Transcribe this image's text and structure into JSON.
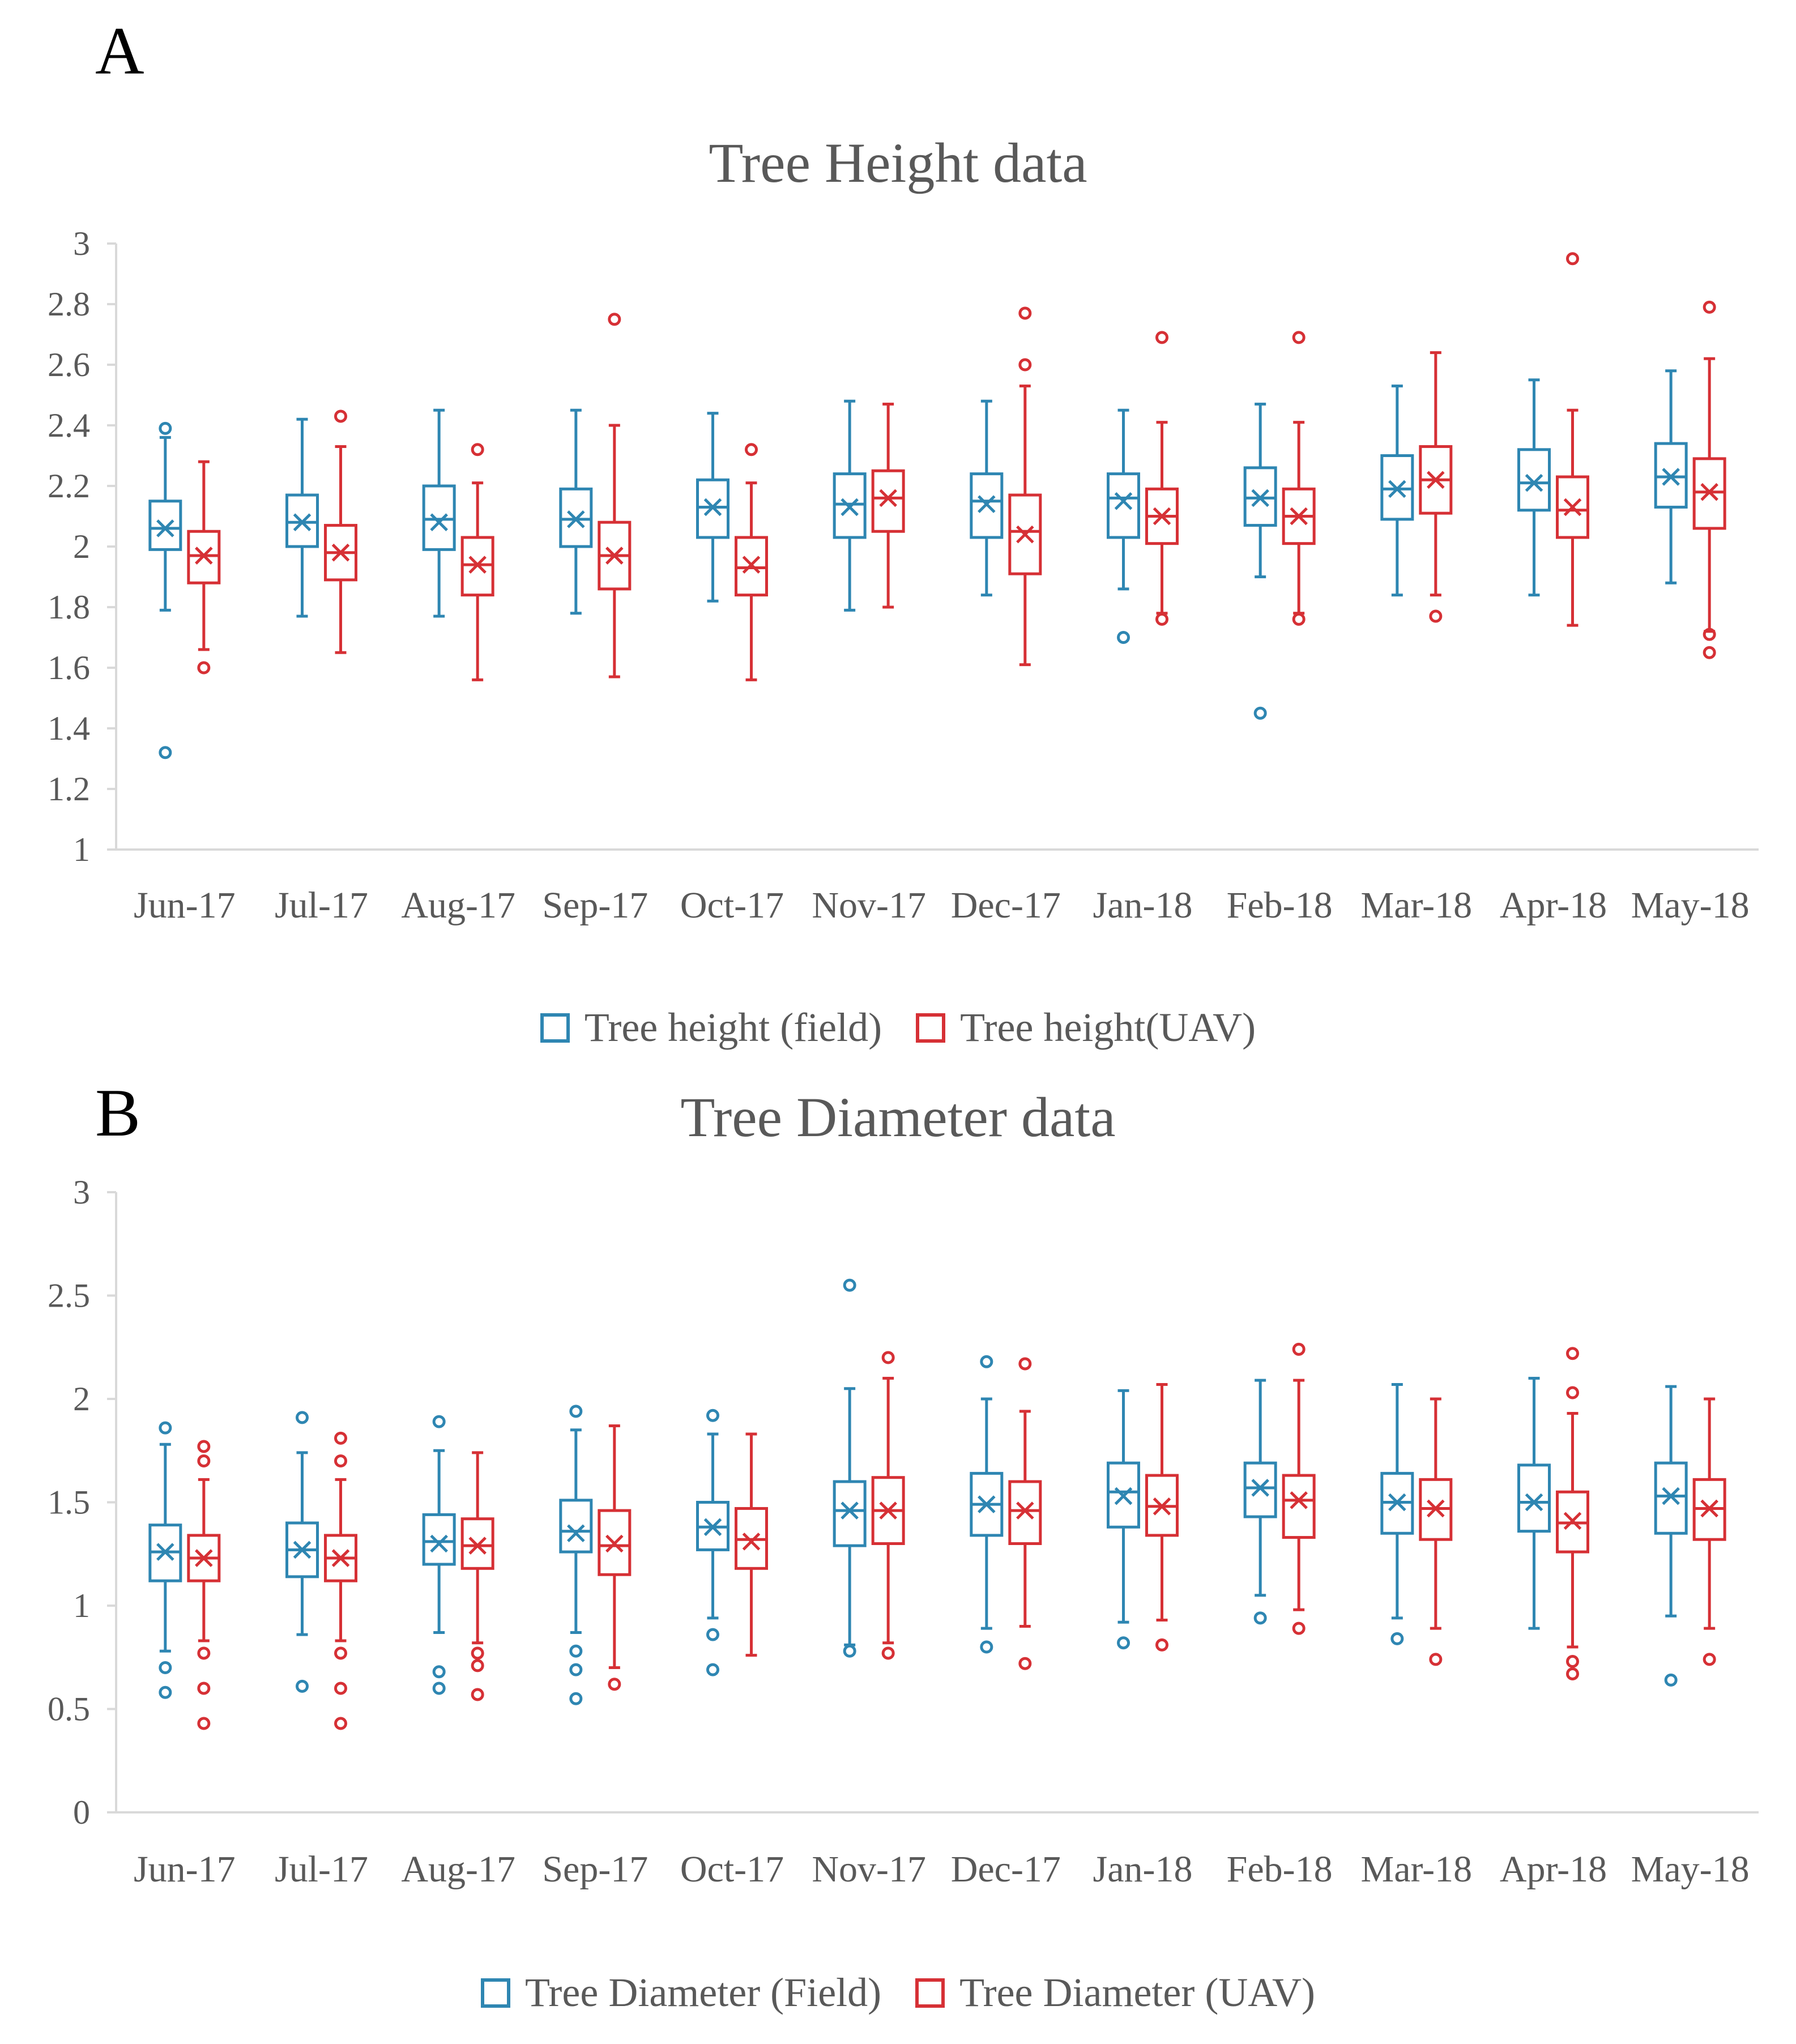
{
  "panels": [
    {
      "label": "A"
    },
    {
      "label": "B"
    }
  ],
  "colors": {
    "field": "#2e86b2",
    "uav": "#d63035",
    "axis": "#d9d9d9",
    "text": "#595959"
  },
  "chart_data": [
    {
      "type": "box",
      "title": "Tree Height data",
      "categories": [
        "Jun-17",
        "Jul-17",
        "Aug-17",
        "Sep-17",
        "Oct-17",
        "Nov-17",
        "Dec-17",
        "Jan-18",
        "Feb-18",
        "Mar-18",
        "Apr-18",
        "May-18"
      ],
      "ylim": [
        1,
        3
      ],
      "yticks": [
        1,
        1.2,
        1.4,
        1.6,
        1.8,
        2,
        2.2,
        2.4,
        2.6,
        2.8,
        3
      ],
      "ytick_labels": [
        "1",
        "1.2",
        "1.4",
        "1.6",
        "1.8",
        "2",
        "2.2",
        "2.4",
        "2.6",
        "2.8",
        "3"
      ],
      "legend": [
        "Tree height (field)",
        "Tree height(UAV)"
      ],
      "series": [
        {
          "name": "Tree height (field)",
          "boxes": [
            {
              "min": 1.79,
              "q1": 1.99,
              "median": 2.06,
              "mean": 2.06,
              "q3": 2.15,
              "max": 2.36,
              "outliers": [
                2.39,
                1.32
              ]
            },
            {
              "min": 1.77,
              "q1": 2.0,
              "median": 2.08,
              "mean": 2.08,
              "q3": 2.17,
              "max": 2.42,
              "outliers": []
            },
            {
              "min": 1.77,
              "q1": 1.99,
              "median": 2.09,
              "mean": 2.08,
              "q3": 2.2,
              "max": 2.45,
              "outliers": []
            },
            {
              "min": 1.78,
              "q1": 2.0,
              "median": 2.09,
              "mean": 2.09,
              "q3": 2.19,
              "max": 2.45,
              "outliers": []
            },
            {
              "min": 1.82,
              "q1": 2.03,
              "median": 2.13,
              "mean": 2.13,
              "q3": 2.22,
              "max": 2.44,
              "outliers": []
            },
            {
              "min": 1.79,
              "q1": 2.03,
              "median": 2.14,
              "mean": 2.13,
              "q3": 2.24,
              "max": 2.48,
              "outliers": []
            },
            {
              "min": 1.84,
              "q1": 2.03,
              "median": 2.15,
              "mean": 2.14,
              "q3": 2.24,
              "max": 2.48,
              "outliers": []
            },
            {
              "min": 1.86,
              "q1": 2.03,
              "median": 2.16,
              "mean": 2.15,
              "q3": 2.24,
              "max": 2.45,
              "outliers": [
                1.7
              ]
            },
            {
              "min": 1.9,
              "q1": 2.07,
              "median": 2.16,
              "mean": 2.16,
              "q3": 2.26,
              "max": 2.47,
              "outliers": [
                1.45
              ]
            },
            {
              "min": 1.84,
              "q1": 2.09,
              "median": 2.19,
              "mean": 2.19,
              "q3": 2.3,
              "max": 2.53,
              "outliers": []
            },
            {
              "min": 1.84,
              "q1": 2.12,
              "median": 2.21,
              "mean": 2.21,
              "q3": 2.32,
              "max": 2.55,
              "outliers": []
            },
            {
              "min": 1.88,
              "q1": 2.13,
              "median": 2.23,
              "mean": 2.23,
              "q3": 2.34,
              "max": 2.58,
              "outliers": []
            }
          ]
        },
        {
          "name": "Tree height(UAV)",
          "boxes": [
            {
              "min": 1.66,
              "q1": 1.88,
              "median": 1.97,
              "mean": 1.97,
              "q3": 2.05,
              "max": 2.28,
              "outliers": [
                1.6
              ]
            },
            {
              "min": 1.65,
              "q1": 1.89,
              "median": 1.98,
              "mean": 1.98,
              "q3": 2.07,
              "max": 2.33,
              "outliers": [
                2.43
              ]
            },
            {
              "min": 1.56,
              "q1": 1.84,
              "median": 1.94,
              "mean": 1.94,
              "q3": 2.03,
              "max": 2.21,
              "outliers": [
                2.32
              ]
            },
            {
              "min": 1.57,
              "q1": 1.86,
              "median": 1.97,
              "mean": 1.97,
              "q3": 2.08,
              "max": 2.4,
              "outliers": [
                2.75
              ]
            },
            {
              "min": 1.56,
              "q1": 1.84,
              "median": 1.93,
              "mean": 1.94,
              "q3": 2.03,
              "max": 2.21,
              "outliers": [
                2.32
              ]
            },
            {
              "min": 1.8,
              "q1": 2.05,
              "median": 2.16,
              "mean": 2.16,
              "q3": 2.25,
              "max": 2.47,
              "outliers": []
            },
            {
              "min": 1.61,
              "q1": 1.91,
              "median": 2.05,
              "mean": 2.04,
              "q3": 2.17,
              "max": 2.53,
              "outliers": [
                2.6,
                2.77
              ]
            },
            {
              "min": 1.78,
              "q1": 2.01,
              "median": 2.1,
              "mean": 2.1,
              "q3": 2.19,
              "max": 2.41,
              "outliers": [
                1.76,
                2.69
              ]
            },
            {
              "min": 1.78,
              "q1": 2.01,
              "median": 2.1,
              "mean": 2.1,
              "q3": 2.19,
              "max": 2.41,
              "outliers": [
                1.76,
                2.69
              ]
            },
            {
              "min": 1.84,
              "q1": 2.11,
              "median": 2.22,
              "mean": 2.22,
              "q3": 2.33,
              "max": 2.64,
              "outliers": [
                1.77
              ]
            },
            {
              "min": 1.74,
              "q1": 2.03,
              "median": 2.12,
              "mean": 2.13,
              "q3": 2.23,
              "max": 2.45,
              "outliers": [
                2.95
              ]
            },
            {
              "min": 1.72,
              "q1": 2.06,
              "median": 2.18,
              "mean": 2.18,
              "q3": 2.29,
              "max": 2.62,
              "outliers": [
                1.65,
                1.71,
                2.79
              ]
            }
          ]
        }
      ]
    },
    {
      "type": "box",
      "title": "Tree Diameter data",
      "categories": [
        "Jun-17",
        "Jul-17",
        "Aug-17",
        "Sep-17",
        "Oct-17",
        "Nov-17",
        "Dec-17",
        "Jan-18",
        "Feb-18",
        "Mar-18",
        "Apr-18",
        "May-18"
      ],
      "ylim": [
        0,
        3
      ],
      "yticks": [
        0,
        0.5,
        1,
        1.5,
        2,
        2.5,
        3
      ],
      "ytick_labels": [
        "0",
        "0.5",
        "1",
        "1.5",
        "2",
        "2.5",
        "3"
      ],
      "legend": [
        "Tree Diameter (Field)",
        "Tree Diameter (UAV)"
      ],
      "series": [
        {
          "name": "Tree Diameter (Field)",
          "boxes": [
            {
              "min": 0.78,
              "q1": 1.12,
              "median": 1.26,
              "mean": 1.26,
              "q3": 1.39,
              "max": 1.78,
              "outliers": [
                1.86,
                0.7,
                0.58
              ]
            },
            {
              "min": 0.86,
              "q1": 1.14,
              "median": 1.27,
              "mean": 1.27,
              "q3": 1.4,
              "max": 1.74,
              "outliers": [
                1.91,
                0.61
              ]
            },
            {
              "min": 0.87,
              "q1": 1.2,
              "median": 1.31,
              "mean": 1.3,
              "q3": 1.44,
              "max": 1.75,
              "outliers": [
                1.89,
                0.68,
                0.6
              ]
            },
            {
              "min": 0.87,
              "q1": 1.26,
              "median": 1.36,
              "mean": 1.35,
              "q3": 1.51,
              "max": 1.85,
              "outliers": [
                1.94,
                0.78,
                0.69,
                0.55
              ]
            },
            {
              "min": 0.94,
              "q1": 1.27,
              "median": 1.38,
              "mean": 1.38,
              "q3": 1.5,
              "max": 1.83,
              "outliers": [
                1.92,
                0.86,
                0.69
              ]
            },
            {
              "min": 0.81,
              "q1": 1.29,
              "median": 1.46,
              "mean": 1.46,
              "q3": 1.6,
              "max": 2.05,
              "outliers": [
                2.55,
                0.78
              ]
            },
            {
              "min": 0.89,
              "q1": 1.34,
              "median": 1.49,
              "mean": 1.49,
              "q3": 1.64,
              "max": 2.0,
              "outliers": [
                2.18,
                0.8
              ]
            },
            {
              "min": 0.92,
              "q1": 1.38,
              "median": 1.55,
              "mean": 1.53,
              "q3": 1.69,
              "max": 2.04,
              "outliers": [
                0.82
              ]
            },
            {
              "min": 1.05,
              "q1": 1.43,
              "median": 1.57,
              "mean": 1.57,
              "q3": 1.69,
              "max": 2.09,
              "outliers": [
                0.94
              ]
            },
            {
              "min": 0.94,
              "q1": 1.35,
              "median": 1.5,
              "mean": 1.5,
              "q3": 1.64,
              "max": 2.07,
              "outliers": [
                0.84
              ]
            },
            {
              "min": 0.89,
              "q1": 1.36,
              "median": 1.5,
              "mean": 1.5,
              "q3": 1.68,
              "max": 2.1,
              "outliers": []
            },
            {
              "min": 0.95,
              "q1": 1.35,
              "median": 1.53,
              "mean": 1.53,
              "q3": 1.69,
              "max": 2.06,
              "outliers": [
                0.64
              ]
            }
          ]
        },
        {
          "name": "Tree Diameter (UAV)",
          "boxes": [
            {
              "min": 0.83,
              "q1": 1.12,
              "median": 1.23,
              "mean": 1.23,
              "q3": 1.34,
              "max": 1.61,
              "outliers": [
                1.77,
                1.7,
                0.77,
                0.6,
                0.43
              ]
            },
            {
              "min": 0.83,
              "q1": 1.12,
              "median": 1.23,
              "mean": 1.23,
              "q3": 1.34,
              "max": 1.61,
              "outliers": [
                1.81,
                1.7,
                0.77,
                0.6,
                0.43
              ]
            },
            {
              "min": 0.82,
              "q1": 1.18,
              "median": 1.29,
              "mean": 1.29,
              "q3": 1.42,
              "max": 1.74,
              "outliers": [
                0.77,
                0.71,
                0.57
              ]
            },
            {
              "min": 0.7,
              "q1": 1.15,
              "median": 1.29,
              "mean": 1.3,
              "q3": 1.46,
              "max": 1.87,
              "outliers": [
                0.62
              ]
            },
            {
              "min": 0.76,
              "q1": 1.18,
              "median": 1.32,
              "mean": 1.31,
              "q3": 1.47,
              "max": 1.83,
              "outliers": []
            },
            {
              "min": 0.82,
              "q1": 1.3,
              "median": 1.46,
              "mean": 1.46,
              "q3": 1.62,
              "max": 2.1,
              "outliers": [
                2.2,
                0.77
              ]
            },
            {
              "min": 0.9,
              "q1": 1.3,
              "median": 1.46,
              "mean": 1.46,
              "q3": 1.6,
              "max": 1.94,
              "outliers": [
                2.17,
                0.72
              ]
            },
            {
              "min": 0.93,
              "q1": 1.34,
              "median": 1.48,
              "mean": 1.48,
              "q3": 1.63,
              "max": 2.07,
              "outliers": [
                0.81
              ]
            },
            {
              "min": 0.98,
              "q1": 1.33,
              "median": 1.51,
              "mean": 1.51,
              "q3": 1.63,
              "max": 2.09,
              "outliers": [
                2.24,
                0.89
              ]
            },
            {
              "min": 0.89,
              "q1": 1.32,
              "median": 1.47,
              "mean": 1.47,
              "q3": 1.61,
              "max": 2.0,
              "outliers": [
                0.74
              ]
            },
            {
              "min": 0.8,
              "q1": 1.26,
              "median": 1.4,
              "mean": 1.41,
              "q3": 1.55,
              "max": 1.93,
              "outliers": [
                2.22,
                2.03,
                0.73,
                0.67
              ]
            },
            {
              "min": 0.89,
              "q1": 1.32,
              "median": 1.47,
              "mean": 1.47,
              "q3": 1.61,
              "max": 2.0,
              "outliers": [
                0.74
              ]
            }
          ]
        }
      ]
    }
  ]
}
